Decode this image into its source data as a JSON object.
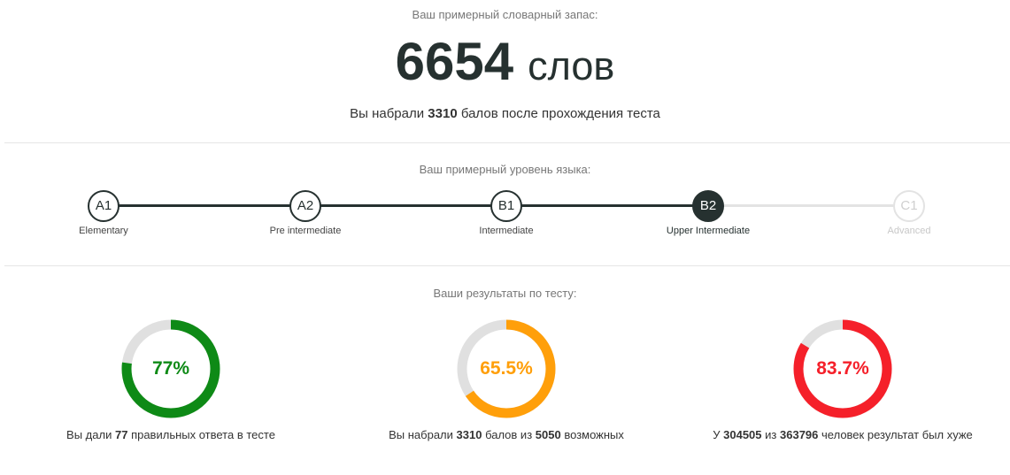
{
  "vocabulary": {
    "label": "Ваш примерный словарный запас:",
    "count": "6654",
    "unit": "слов",
    "score_prefix": "Вы набрали",
    "score_value": "3310",
    "score_suffix": "балов после прохождения теста"
  },
  "level": {
    "label": "Ваш примерный уровень языка:",
    "current_index": 3,
    "colors": {
      "done": "#263130",
      "future": "#e3e3e3"
    },
    "levels": [
      {
        "code": "A1",
        "name": "Elementary"
      },
      {
        "code": "A2",
        "name": "Pre intermediate"
      },
      {
        "code": "B1",
        "name": "Intermediate"
      },
      {
        "code": "B2",
        "name": "Upper Intermediate"
      },
      {
        "code": "C1",
        "name": "Advanced"
      }
    ]
  },
  "results": {
    "label": "Ваши результаты по тесту:",
    "track_color": "#e0e0e0",
    "items": [
      {
        "value": "77%",
        "fraction": 0.77,
        "color": "#0e8a16",
        "caption": {
          "p1": "Вы дали",
          "b1": "77",
          "p2": "правильных ответа в тесте",
          "b2": "",
          "p3": ""
        }
      },
      {
        "value": "65.5%",
        "fraction": 0.655,
        "color": "#ff9f0a",
        "caption": {
          "p1": "Вы набрали",
          "b1": "3310",
          "p2": "балов из",
          "b2": "5050",
          "p3": "возможных"
        }
      },
      {
        "value": "83.7%",
        "fraction": 0.837,
        "color": "#f5202a",
        "caption": {
          "p1": "У",
          "b1": "304505",
          "p2": "из",
          "b2": "363796",
          "p3": "человек результат был хуже"
        }
      }
    ]
  }
}
